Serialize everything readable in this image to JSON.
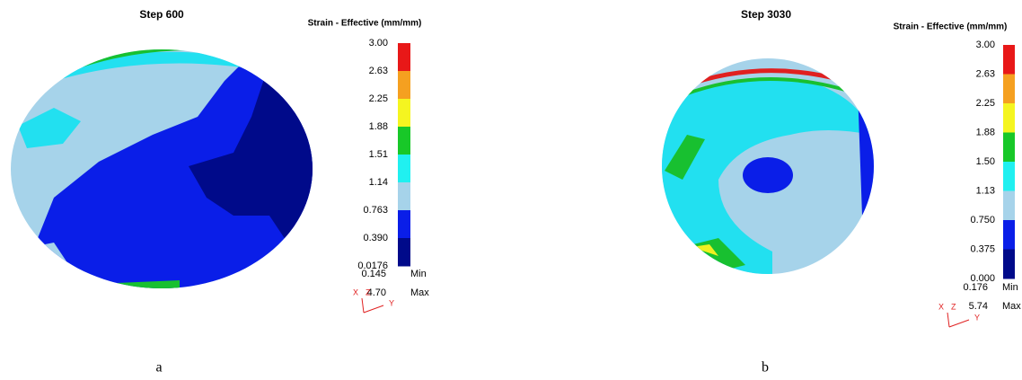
{
  "panels": [
    {
      "title": "Step 600",
      "legend_title": "Strain - Effective (mm/mm)",
      "colorbar_labels": [
        "3.00",
        "2.63",
        "2.25",
        "1.88",
        "1.51",
        "1.14",
        "0.763",
        "0.390",
        "0.0176"
      ],
      "min_value": "0.145",
      "min_label": "Min",
      "max_value": "4.70",
      "max_label": "Max",
      "axes": [
        "X",
        "Z",
        "Y"
      ],
      "caption": "a"
    },
    {
      "title": "Step 3030",
      "legend_title": "Strain - Effective (mm/mm)",
      "colorbar_labels": [
        "3.00",
        "2.63",
        "2.25",
        "1.88",
        "1.50",
        "1.13",
        "0.750",
        "0.375",
        "0.000"
      ],
      "min_value": "0.176",
      "min_label": "Min",
      "max_value": "5.74",
      "max_label": "Max",
      "axes": [
        "X",
        "Z",
        "Y"
      ],
      "caption": "b"
    }
  ]
}
